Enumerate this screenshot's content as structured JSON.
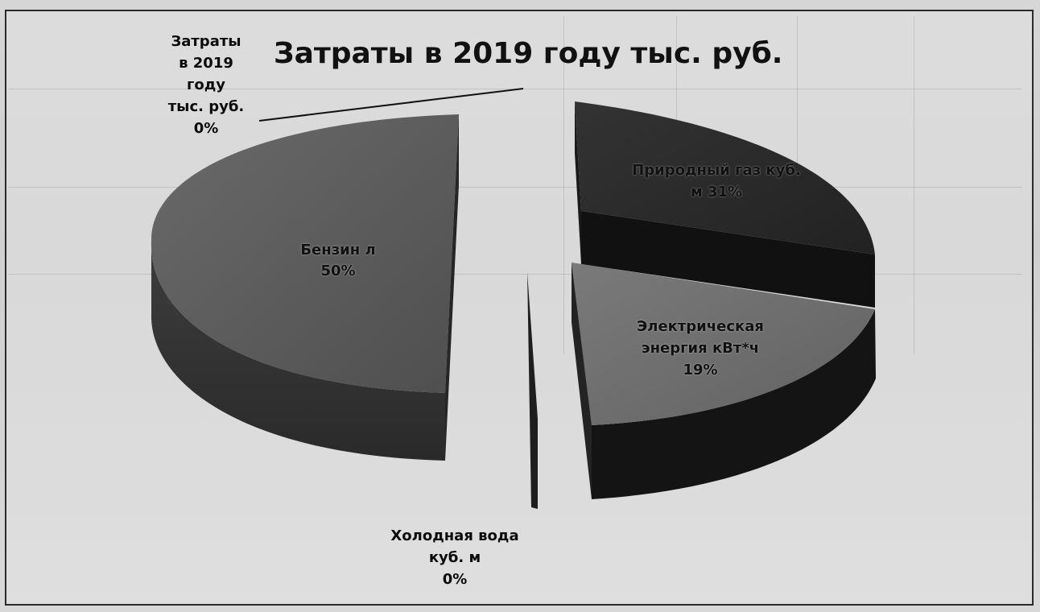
{
  "chart_data": {
    "type": "pie",
    "title": "Затраты в 2019 году тыс. руб.",
    "slices": [
      {
        "label_lines": [
          "Затраты",
          "в 2019",
          "году",
          "тыс. руб."
        ],
        "percent_label": "0%",
        "value": 0
      },
      {
        "label_lines": [
          "Природный газ куб.",
          "м"
        ],
        "percent_label": "31%",
        "value": 31
      },
      {
        "label_lines": [
          "Электрическая",
          "энергия кВт*ч"
        ],
        "percent_label": "19%",
        "value": 19
      },
      {
        "label_lines": [
          "Холодная вода",
          "куб. м"
        ],
        "percent_label": "0%",
        "value": 0
      },
      {
        "label_lines": [
          "Бензин л"
        ],
        "percent_label": "50%",
        "value": 50
      }
    ],
    "colors": {
      "gas": "#2b2b2b",
      "electric": "#6f6f6f",
      "benzin": "#5a5a5a",
      "water": "#3a3a3a"
    },
    "style": "3d-exploded"
  }
}
